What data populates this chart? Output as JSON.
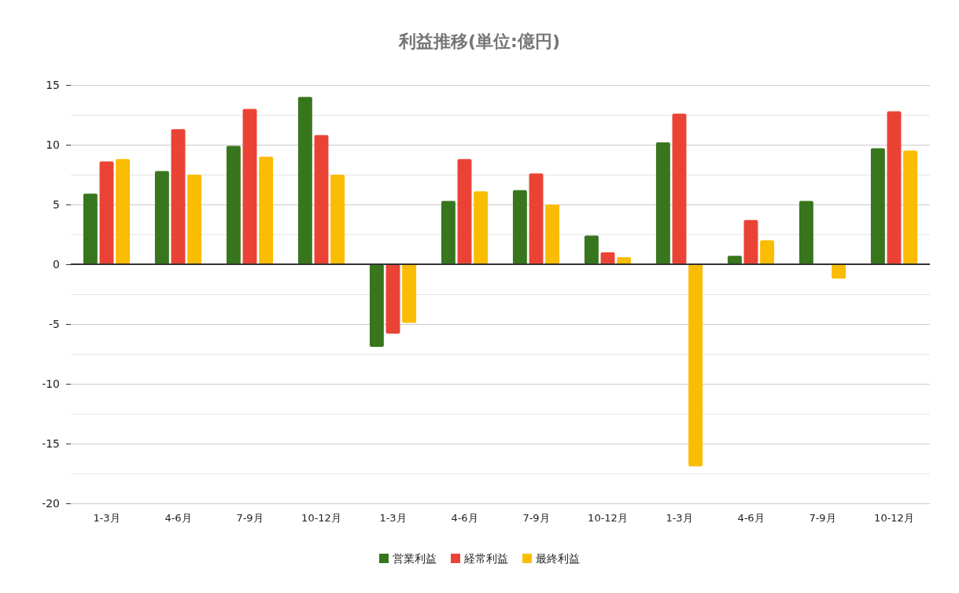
{
  "chart_data": {
    "type": "bar",
    "title": "利益推移(単位:億円)",
    "categories": [
      "1-3月",
      "4-6月",
      "7-9月",
      "10-12月",
      "1-3月",
      "4-6月",
      "7-9月",
      "10-12月",
      "1-3月",
      "4-6月",
      "7-9月",
      "10-12月"
    ],
    "series": [
      {
        "name": "営業利益",
        "color": "#38761d",
        "values": [
          5.9,
          7.8,
          9.9,
          14.0,
          -6.9,
          5.3,
          6.2,
          2.4,
          10.2,
          0.7,
          5.3,
          9.7
        ]
      },
      {
        "name": "経常利益",
        "color": "#ea4335",
        "values": [
          8.6,
          11.3,
          13.0,
          10.8,
          -5.8,
          8.8,
          7.6,
          1.0,
          12.6,
          3.7,
          null,
          12.8
        ]
      },
      {
        "name": "最終利益",
        "color": "#fbbc04",
        "values": [
          8.8,
          7.5,
          9.0,
          7.5,
          -4.9,
          6.1,
          5.0,
          0.6,
          -16.9,
          2.0,
          -1.2,
          9.5
        ]
      }
    ],
    "ylim": [
      -20,
      15
    ],
    "yticks": [
      -20,
      {
        "value": -17.5,
        "label": null
      },
      -15,
      {
        "value": -12.5,
        "label": null
      },
      -10,
      {
        "value": -7.5,
        "label": null
      },
      -5,
      {
        "value": -2.5,
        "label": null
      },
      0,
      {
        "value": 2.5,
        "label": null
      },
      5,
      {
        "value": 7.5,
        "label": null
      },
      10,
      {
        "value": 12.5,
        "label": null
      },
      15
    ],
    "grid": true,
    "legend": "bottom"
  }
}
